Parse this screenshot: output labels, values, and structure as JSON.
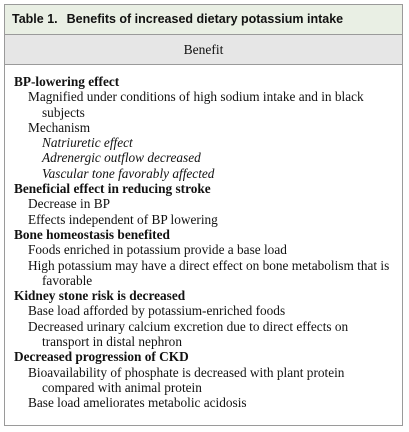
{
  "table": {
    "label": "Table 1.",
    "title": "Benefits of increased dietary potassium intake",
    "header": "Benefit",
    "sections": [
      {
        "heading": "BP-lowering effect",
        "items": [
          {
            "text": "Magnified under conditions of high sodium intake and in black subjects"
          },
          {
            "text": "Mechanism",
            "children": [
              "Natriuretic effect",
              "Adrenergic outflow decreased",
              "Vascular tone favorably affected"
            ]
          }
        ]
      },
      {
        "heading": "Beneficial effect in reducing stroke",
        "items": [
          {
            "text": "Decrease in BP"
          },
          {
            "text": "Effects independent of BP lowering"
          }
        ]
      },
      {
        "heading": "Bone homeostasis benefited",
        "items": [
          {
            "text": "Foods enriched in potassium provide a base load"
          },
          {
            "text": "High potassium may have a direct effect on bone metabolism that is favorable"
          }
        ]
      },
      {
        "heading": "Kidney stone risk is decreased",
        "items": [
          {
            "text": "Base load afforded by potassium-enriched foods"
          },
          {
            "text": "Decreased urinary calcium excretion due to direct effects on transport in distal nephron"
          }
        ]
      },
      {
        "heading": "Decreased progression of CKD",
        "items": [
          {
            "text": "Bioavailability of phosphate is decreased with plant protein compared with animal protein"
          },
          {
            "text": "Base load ameliorates metabolic acidosis"
          }
        ]
      }
    ]
  }
}
